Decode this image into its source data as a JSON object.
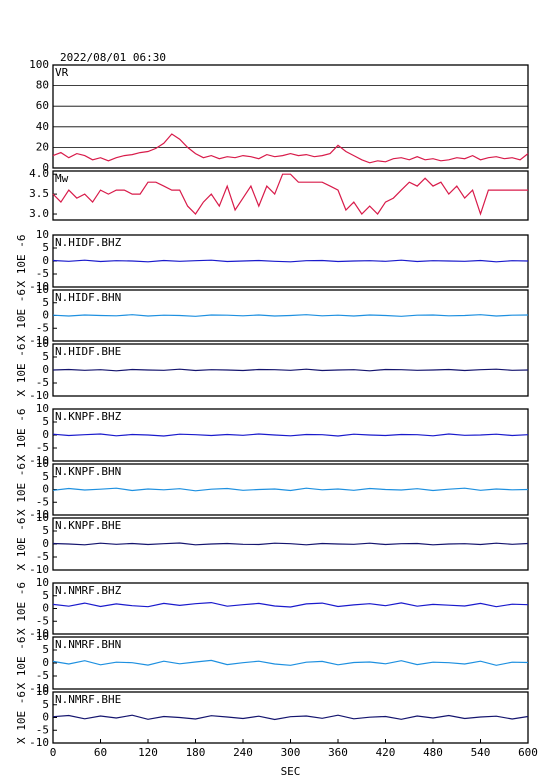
{
  "chart_data": [
    {
      "type": "line",
      "subtitle": "2022/08/01 06:30",
      "title": "VR",
      "color": "#d81b4a",
      "x": [
        0,
        10,
        20,
        30,
        40,
        50,
        60,
        70,
        80,
        90,
        100,
        110,
        120,
        130,
        140,
        150,
        160,
        170,
        180,
        190,
        200,
        210,
        220,
        230,
        240,
        250,
        260,
        270,
        280,
        290,
        300,
        310,
        320,
        330,
        340,
        350,
        360,
        370,
        380,
        390,
        400,
        410,
        420,
        430,
        440,
        450,
        460,
        470,
        480,
        490,
        500,
        510,
        520,
        530,
        540,
        550,
        560,
        570,
        580,
        590,
        600
      ],
      "values": [
        12,
        15,
        10,
        14,
        12,
        8,
        10,
        7,
        10,
        12,
        13,
        15,
        16,
        19,
        24,
        33,
        28,
        20,
        14,
        10,
        12,
        9,
        11,
        10,
        12,
        11,
        9,
        13,
        11,
        12,
        14,
        12,
        13,
        11,
        12,
        14,
        22,
        16,
        12,
        8,
        5,
        7,
        6,
        9,
        10,
        8,
        11,
        8,
        9,
        7,
        8,
        10,
        9,
        12,
        8,
        10,
        11,
        9,
        10,
        8,
        14
      ],
      "xlim": [
        0,
        600
      ],
      "ylim": [
        0,
        100
      ],
      "yticks": [
        0,
        20,
        40,
        60,
        80,
        100
      ],
      "grid": true
    },
    {
      "type": "line",
      "title": "Mw",
      "color": "#d81b4a",
      "x": [
        0,
        10,
        20,
        30,
        40,
        50,
        60,
        70,
        80,
        90,
        100,
        110,
        120,
        130,
        140,
        150,
        160,
        170,
        180,
        190,
        200,
        210,
        220,
        230,
        240,
        250,
        260,
        270,
        280,
        290,
        300,
        310,
        320,
        330,
        340,
        350,
        360,
        370,
        380,
        390,
        400,
        410,
        420,
        430,
        440,
        450,
        460,
        470,
        480,
        490,
        500,
        510,
        520,
        530,
        540,
        550,
        560,
        570,
        580,
        590,
        600
      ],
      "values": [
        3.5,
        3.3,
        3.6,
        3.4,
        3.5,
        3.3,
        3.6,
        3.5,
        3.6,
        3.6,
        3.5,
        3.5,
        3.8,
        3.8,
        3.7,
        3.6,
        3.6,
        3.2,
        3.0,
        3.3,
        3.5,
        3.2,
        3.7,
        3.1,
        3.4,
        3.7,
        3.2,
        3.7,
        3.5,
        4.0,
        4.0,
        3.8,
        3.8,
        3.8,
        3.8,
        3.7,
        3.6,
        3.1,
        3.3,
        3.0,
        3.2,
        3.0,
        3.3,
        3.4,
        3.6,
        3.8,
        3.7,
        3.9,
        3.7,
        3.8,
        3.5,
        3.7,
        3.4,
        3.6,
        3.0,
        3.6,
        3.6,
        3.6,
        3.6,
        3.6,
        3.6
      ],
      "xlim": [
        0,
        600
      ],
      "ylim": [
        2.85,
        4.08
      ],
      "yticks": [
        {
          "value": 3,
          "label": "3.0"
        },
        3.5,
        {
          "value": 4,
          "label": "4.0"
        }
      ],
      "grid": false
    },
    {
      "type": "line",
      "title": "N.HIDF.BHZ",
      "ylabel": "X 10E -6",
      "color": "#1a1acc",
      "x": [
        0,
        20,
        40,
        60,
        80,
        100,
        120,
        140,
        160,
        180,
        200,
        220,
        240,
        260,
        280,
        300,
        320,
        340,
        360,
        380,
        400,
        420,
        440,
        460,
        480,
        500,
        520,
        540,
        560,
        580,
        600
      ],
      "values": [
        0.2,
        -0.1,
        0.3,
        -0.2,
        0.1,
        0,
        -0.3,
        0.2,
        -0.1,
        0.1,
        0.3,
        -0.2,
        0,
        0.2,
        -0.1,
        -0.3,
        0.1,
        0.2,
        -0.2,
        0,
        0.1,
        -0.1,
        0.3,
        -0.2,
        0.1,
        0,
        -0.1,
        0.2,
        -0.3,
        0.1,
        0
      ],
      "xlim": [
        0,
        600
      ],
      "ylim": [
        -10,
        10
      ],
      "yticks": [
        -10,
        -5,
        0,
        5,
        10
      ],
      "grid": false
    },
    {
      "type": "line",
      "title": "N.HIDF.BHN",
      "ylabel": "X 10E -6",
      "color": "#1e90e0",
      "x": [
        0,
        20,
        40,
        60,
        80,
        100,
        120,
        140,
        160,
        180,
        200,
        220,
        240,
        260,
        280,
        300,
        320,
        340,
        360,
        380,
        400,
        420,
        440,
        460,
        480,
        500,
        520,
        540,
        560,
        580,
        600
      ],
      "values": [
        0.1,
        -0.2,
        0.2,
        0,
        -0.1,
        0.3,
        -0.2,
        0.1,
        0,
        -0.3,
        0.2,
        0.1,
        -0.1,
        0.2,
        -0.2,
        0,
        0.3,
        -0.1,
        0.1,
        -0.2,
        0.2,
        0,
        -0.3,
        0.1,
        0.2,
        -0.1,
        0,
        0.3,
        -0.2,
        0.1,
        0.2
      ],
      "xlim": [
        0,
        600
      ],
      "ylim": [
        -10,
        10
      ],
      "yticks": [
        -10,
        -5,
        0,
        5,
        10
      ],
      "grid": false
    },
    {
      "type": "line",
      "title": "N.HIDF.BHE",
      "ylabel": "X 10E -6",
      "color": "#14146e",
      "x": [
        0,
        20,
        40,
        60,
        80,
        100,
        120,
        140,
        160,
        180,
        200,
        220,
        240,
        260,
        280,
        300,
        320,
        340,
        360,
        380,
        400,
        420,
        440,
        460,
        480,
        500,
        520,
        540,
        560,
        580,
        600
      ],
      "values": [
        0,
        0.2,
        -0.1,
        0.1,
        -0.3,
        0.2,
        0,
        -0.1,
        0.3,
        -0.2,
        0.1,
        0,
        -0.2,
        0.2,
        0.1,
        -0.1,
        0.3,
        -0.2,
        0,
        0.1,
        -0.3,
        0.2,
        0.1,
        -0.1,
        0,
        0.2,
        -0.2,
        0.1,
        0.3,
        -0.1,
        0
      ],
      "xlim": [
        0,
        600
      ],
      "ylim": [
        -10,
        10
      ],
      "yticks": [
        -10,
        -5,
        0,
        5,
        10
      ],
      "grid": false
    },
    {
      "type": "line",
      "title": "N.KNPF.BHZ",
      "ylabel": "X 10E -6",
      "color": "#1a1acc",
      "x": [
        0,
        20,
        40,
        60,
        80,
        100,
        120,
        140,
        160,
        180,
        200,
        220,
        240,
        260,
        280,
        300,
        320,
        340,
        360,
        380,
        400,
        420,
        440,
        460,
        480,
        500,
        520,
        540,
        560,
        580,
        600
      ],
      "values": [
        0.3,
        -0.2,
        0.1,
        0.4,
        -0.3,
        0.2,
        0,
        -0.4,
        0.3,
        0.1,
        -0.2,
        0.2,
        -0.1,
        0.4,
        0,
        -0.3,
        0.2,
        0.1,
        -0.4,
        0.3,
        0,
        -0.2,
        0.2,
        0.1,
        -0.3,
        0.4,
        -0.1,
        0,
        0.3,
        -0.2,
        0.1
      ],
      "xlim": [
        0,
        600
      ],
      "ylim": [
        -10,
        10
      ],
      "yticks": [
        -10,
        -5,
        0,
        5,
        10
      ],
      "grid": false
    },
    {
      "type": "line",
      "title": "N.KNPF.BHN",
      "ylabel": "X 10E -6",
      "color": "#1e90e0",
      "x": [
        0,
        20,
        40,
        60,
        80,
        100,
        120,
        140,
        160,
        180,
        200,
        220,
        240,
        260,
        280,
        300,
        320,
        340,
        360,
        380,
        400,
        420,
        440,
        460,
        480,
        500,
        520,
        540,
        560,
        580,
        600
      ],
      "values": [
        -0.3,
        0.4,
        -0.2,
        0.1,
        0.5,
        -0.4,
        0.2,
        -0.1,
        0.3,
        -0.5,
        0.1,
        0.4,
        -0.3,
        0,
        0.2,
        -0.4,
        0.5,
        -0.1,
        0.2,
        -0.3,
        0.4,
        0,
        -0.2,
        0.3,
        -0.4,
        0.1,
        0.5,
        -0.3,
        0.2,
        -0.1,
        0
      ],
      "xlim": [
        0,
        600
      ],
      "ylim": [
        -10,
        10
      ],
      "yticks": [
        -10,
        -5,
        0,
        5,
        10
      ],
      "grid": false
    },
    {
      "type": "line",
      "title": "N.KNPF.BHE",
      "ylabel": "X 10E -6",
      "color": "#14146e",
      "x": [
        0,
        20,
        40,
        60,
        80,
        100,
        120,
        140,
        160,
        180,
        200,
        220,
        240,
        260,
        280,
        300,
        320,
        340,
        360,
        380,
        400,
        420,
        440,
        460,
        480,
        500,
        520,
        540,
        560,
        580,
        600
      ],
      "values": [
        0.2,
        0,
        -0.3,
        0.3,
        -0.1,
        0.2,
        -0.2,
        0.1,
        0.4,
        -0.3,
        0,
        0.2,
        -0.1,
        -0.2,
        0.3,
        0.1,
        -0.3,
        0.2,
        0,
        -0.1,
        0.3,
        -0.2,
        0.1,
        0.2,
        -0.3,
        0,
        0.1,
        -0.2,
        0.3,
        -0.1,
        0.2
      ],
      "xlim": [
        0,
        600
      ],
      "ylim": [
        -10,
        10
      ],
      "yticks": [
        -10,
        -5,
        0,
        5,
        10
      ],
      "grid": false
    },
    {
      "type": "line",
      "title": "N.NMRF.BHZ",
      "ylabel": "X 10E -6",
      "color": "#1a1acc",
      "x": [
        0,
        20,
        40,
        60,
        80,
        100,
        120,
        140,
        160,
        180,
        200,
        220,
        240,
        260,
        280,
        300,
        320,
        340,
        360,
        380,
        400,
        420,
        440,
        460,
        480,
        500,
        520,
        540,
        560,
        580,
        600
      ],
      "values": [
        1.6,
        0.9,
        2.1,
        0.8,
        1.8,
        1.1,
        0.7,
        2.0,
        1.2,
        1.9,
        2.3,
        0.9,
        1.5,
        2.0,
        1.0,
        0.6,
        1.8,
        2.1,
        0.8,
        1.4,
        1.9,
        1.1,
        2.2,
        0.9,
        1.6,
        1.3,
        1.0,
        2.0,
        0.7,
        1.7,
        1.5
      ],
      "xlim": [
        0,
        600
      ],
      "ylim": [
        -10,
        10
      ],
      "yticks": [
        -10,
        -5,
        0,
        5,
        10
      ],
      "grid": false
    },
    {
      "type": "line",
      "title": "N.NMRF.BHN",
      "ylabel": "X 10E -6",
      "color": "#1e90e0",
      "x": [
        0,
        20,
        40,
        60,
        80,
        100,
        120,
        140,
        160,
        180,
        200,
        220,
        240,
        260,
        280,
        300,
        320,
        340,
        360,
        380,
        400,
        420,
        440,
        460,
        480,
        500,
        520,
        540,
        560,
        580,
        600
      ],
      "values": [
        0.6,
        -0.4,
        0.9,
        -0.7,
        0.3,
        0.1,
        -0.8,
        0.7,
        -0.3,
        0.4,
        1.0,
        -0.6,
        0.1,
        0.7,
        -0.4,
        -0.9,
        0.3,
        0.6,
        -0.7,
        0.2,
        0.4,
        -0.3,
        0.9,
        -0.6,
        0.3,
        0.1,
        -0.4,
        0.7,
        -0.9,
        0.3,
        0.2
      ],
      "xlim": [
        0,
        600
      ],
      "ylim": [
        -10,
        10
      ],
      "yticks": [
        -10,
        -5,
        0,
        5,
        10
      ],
      "grid": false
    },
    {
      "type": "line",
      "title": "N.NMRF.BHE",
      "ylabel": "X 10E -6",
      "color": "#14146e",
      "x": [
        0,
        20,
        40,
        60,
        80,
        100,
        120,
        140,
        160,
        180,
        200,
        220,
        240,
        260,
        280,
        300,
        320,
        340,
        360,
        380,
        400,
        420,
        440,
        460,
        480,
        500,
        520,
        540,
        560,
        580,
        600
      ],
      "values": [
        0.3,
        0.8,
        -0.5,
        0.6,
        -0.2,
        0.9,
        -0.7,
        0.4,
        0,
        -0.6,
        0.7,
        0.2,
        -0.4,
        0.5,
        -0.8,
        0.3,
        0.6,
        -0.3,
        0.9,
        -0.5,
        0.1,
        0.4,
        -0.7,
        0.6,
        -0.2,
        0.8,
        -0.4,
        0.2,
        0.5,
        -0.6,
        0.4
      ],
      "xlim": [
        0,
        600
      ],
      "ylim": [
        -10,
        10
      ],
      "yticks": [
        -10,
        -5,
        0,
        5,
        10
      ],
      "grid": false,
      "xticks": [
        0,
        60,
        120,
        180,
        240,
        300,
        360,
        420,
        480,
        540,
        600
      ],
      "xlabel": "SEC"
    }
  ]
}
